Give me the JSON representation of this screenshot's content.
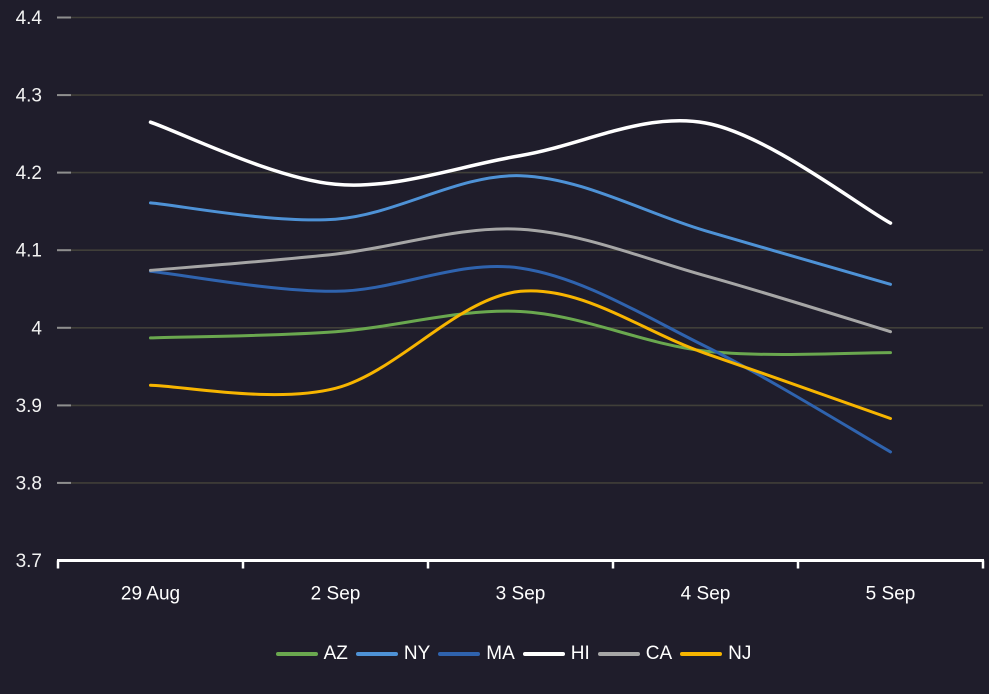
{
  "chart_data": {
    "type": "line",
    "title": "",
    "xlabel": "",
    "ylabel": "",
    "categories": [
      "29 Aug",
      "2 Sep",
      "3 Sep",
      "4 Sep",
      "5 Sep"
    ],
    "series": [
      {
        "name": "AZ",
        "color": "#6aa84f",
        "values": [
          3.987,
          3.995,
          4.021,
          3.97,
          3.968
        ]
      },
      {
        "name": "NY",
        "color": "#4e92d6",
        "values": [
          4.161,
          4.14,
          4.196,
          4.125,
          4.056
        ]
      },
      {
        "name": "MA",
        "color": "#2f63ae",
        "values": [
          4.073,
          4.047,
          4.077,
          3.976,
          3.84
        ]
      },
      {
        "name": "HI",
        "color": "#ffffff",
        "values": [
          4.265,
          4.185,
          4.222,
          4.264,
          4.135
        ]
      },
      {
        "name": "CA",
        "color": "#a6a6a6",
        "values": [
          4.074,
          4.095,
          4.127,
          4.067,
          3.995
        ]
      },
      {
        "name": "NJ",
        "color": "#f7b500",
        "values": [
          3.926,
          3.922,
          4.047,
          3.967,
          3.883
        ]
      }
    ],
    "y_ticks": [
      "4.4",
      "4.3",
      "4.2",
      "4.1",
      "4",
      "3.9",
      "3.8",
      "3.7"
    ],
    "ylim": [
      3.7,
      4.4
    ],
    "grid": "horizontal",
    "legend_position": "bottom",
    "colors": {
      "background": "#1f1d2b",
      "gridline": "#403f39",
      "grid_tick": "#8f8f8f",
      "axis": "#ffffff",
      "tick_text": "#f2f2f2"
    }
  }
}
